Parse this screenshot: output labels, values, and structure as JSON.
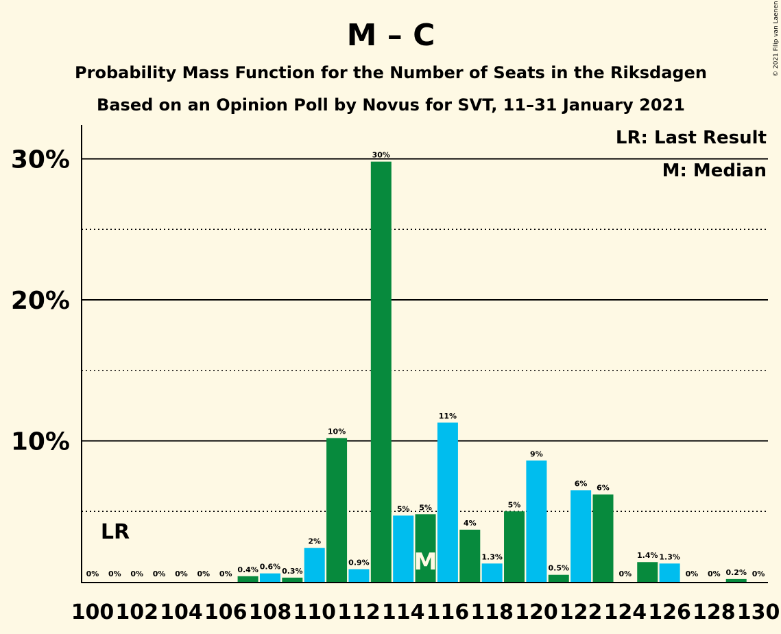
{
  "title": "M – C",
  "subtitle1": "Probability Mass Function for the Number of Seats in the Riksdagen",
  "subtitle2": "Based on an Opinion Poll by Novus for SVT, 11–31 January 2021",
  "copyright": "© 2021 Filip van Laenen",
  "legend": {
    "lr": "LR: Last Result",
    "m": "M: Median"
  },
  "lr_marker": "LR",
  "median_marker": "M",
  "colors": {
    "background": "#fef9e4",
    "green": "#078a3d",
    "blue": "#00bdee",
    "axis": "#000000"
  },
  "chart_data": {
    "type": "bar",
    "title": "M – C",
    "xlabel": "",
    "ylabel": "",
    "ylim": [
      0,
      32.5
    ],
    "yticks": [
      {
        "value": 10,
        "label": "10%"
      },
      {
        "value": 20,
        "label": "20%"
      },
      {
        "value": 30,
        "label": "30%"
      }
    ],
    "grid": {
      "solid": [
        10,
        20,
        30
      ],
      "dotted": [
        5,
        15,
        25
      ]
    },
    "xtick_labels": [
      "100",
      "102",
      "104",
      "106",
      "108",
      "110",
      "112",
      "114",
      "116",
      "118",
      "120",
      "122",
      "124",
      "126",
      "128",
      "130"
    ],
    "last_result": 100,
    "median": 115,
    "bars": [
      {
        "seats": 100,
        "value": 0,
        "label": "0%"
      },
      {
        "seats": 101,
        "value": 0,
        "label": "0%"
      },
      {
        "seats": 102,
        "value": 0,
        "label": "0%"
      },
      {
        "seats": 103,
        "value": 0,
        "label": "0%"
      },
      {
        "seats": 104,
        "value": 0,
        "label": "0%"
      },
      {
        "seats": 105,
        "value": 0,
        "label": "0%"
      },
      {
        "seats": 106,
        "value": 0,
        "label": "0%"
      },
      {
        "seats": 107,
        "value": 0.4,
        "label": "0.4%"
      },
      {
        "seats": 108,
        "value": 0.6,
        "label": "0.6%"
      },
      {
        "seats": 109,
        "value": 0.3,
        "label": "0.3%"
      },
      {
        "seats": 110,
        "value": 2.4,
        "label": "2%"
      },
      {
        "seats": 111,
        "value": 10.2,
        "label": "10%"
      },
      {
        "seats": 112,
        "value": 0.9,
        "label": "0.9%"
      },
      {
        "seats": 113,
        "value": 29.8,
        "label": "30%"
      },
      {
        "seats": 114,
        "value": 4.7,
        "label": "5%"
      },
      {
        "seats": 115,
        "value": 4.8,
        "label": "5%"
      },
      {
        "seats": 116,
        "value": 11.3,
        "label": "11%"
      },
      {
        "seats": 117,
        "value": 3.7,
        "label": "4%"
      },
      {
        "seats": 118,
        "value": 1.3,
        "label": "1.3%"
      },
      {
        "seats": 119,
        "value": 5.0,
        "label": "5%"
      },
      {
        "seats": 120,
        "value": 8.6,
        "label": "9%"
      },
      {
        "seats": 121,
        "value": 0.5,
        "label": "0.5%"
      },
      {
        "seats": 122,
        "value": 6.5,
        "label": "6%"
      },
      {
        "seats": 123,
        "value": 6.2,
        "label": "6%"
      },
      {
        "seats": 124,
        "value": 0,
        "label": "0%"
      },
      {
        "seats": 125,
        "value": 1.4,
        "label": "1.4%"
      },
      {
        "seats": 126,
        "value": 1.3,
        "label": "1.3%"
      },
      {
        "seats": 127,
        "value": 0,
        "label": "0%"
      },
      {
        "seats": 128,
        "value": 0,
        "label": "0%"
      },
      {
        "seats": 129,
        "value": 0.2,
        "label": "0.2%"
      },
      {
        "seats": 130,
        "value": 0,
        "label": "0%"
      }
    ]
  }
}
